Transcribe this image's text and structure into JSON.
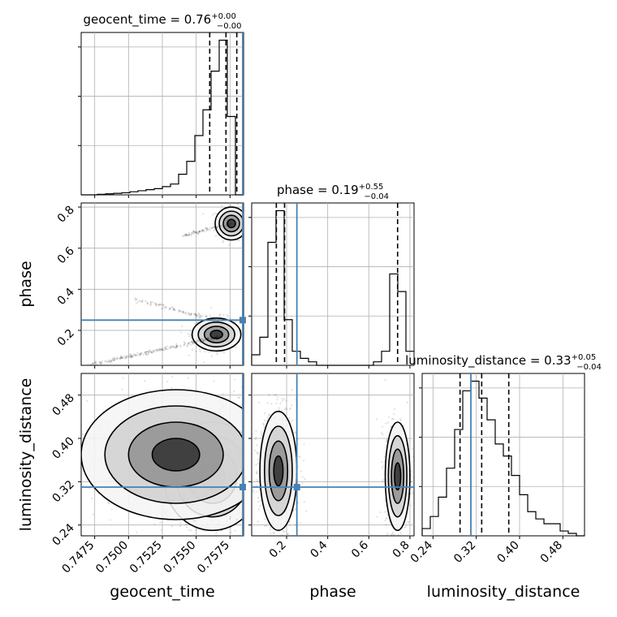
{
  "chart_data": {
    "type": "corner",
    "truth_color": "#4682b4",
    "line_color": "#000000",
    "grid": true,
    "params": [
      {
        "name": "geocent_time",
        "label": "geocent_time",
        "range": [
          0.7465,
          0.7585
        ],
        "ticks": [
          0.7475,
          0.75,
          0.7525,
          0.755,
          0.7575
        ],
        "tick_labels": [
          "0.7475",
          "0.7500",
          "0.7525",
          "0.7550",
          "0.7575"
        ],
        "truth": 0.7585,
        "title": {
          "prefix": "geocent_time = 0.76",
          "plus": "+0.00",
          "minus": "−0.00"
        },
        "quantiles": [
          0.756,
          0.7572,
          0.758
        ]
      },
      {
        "name": "phase",
        "label": "phase",
        "range": [
          0.03,
          0.82
        ],
        "ticks": [
          0.2,
          0.4,
          0.6,
          0.8
        ],
        "tick_labels": [
          "0.2",
          "0.4",
          "0.6",
          "0.8"
        ],
        "truth": 0.25,
        "title": {
          "prefix": "phase = 0.19",
          "plus": "+0.55",
          "minus": "−0.04"
        },
        "quantiles": [
          0.15,
          0.19,
          0.74
        ]
      },
      {
        "name": "luminosity_distance",
        "label": "luminosity_distance",
        "range": [
          0.22,
          0.52
        ],
        "ticks": [
          0.24,
          0.32,
          0.4,
          0.48
        ],
        "tick_labels": [
          "0.24",
          "0.32",
          "0.40",
          "0.48"
        ],
        "truth": 0.31,
        "title": {
          "prefix": "luminosity_distance = 0.33",
          "plus": "+0.05",
          "minus": "−0.04"
        },
        "quantiles": [
          0.29,
          0.33,
          0.38
        ]
      }
    ],
    "histograms": {
      "geocent_time": {
        "bin_edges": [
          0.7465,
          0.7471,
          0.7477,
          0.7483,
          0.7489,
          0.7495,
          0.7501,
          0.7507,
          0.7513,
          0.7519,
          0.7525,
          0.7531,
          0.7537,
          0.7543,
          0.7549,
          0.7555,
          0.7561,
          0.7567,
          0.7573,
          0.7579,
          0.7585
        ],
        "counts": [
          0,
          0,
          1,
          2,
          3,
          4,
          6,
          8,
          10,
          12,
          16,
          21,
          40,
          65,
          115,
          165,
          240,
          300,
          152,
          0
        ]
      },
      "phase": {
        "bin_edges": [
          0.03,
          0.0695,
          0.109,
          0.1485,
          0.188,
          0.2275,
          0.267,
          0.3065,
          0.346,
          0.3855,
          0.425,
          0.4645,
          0.504,
          0.5435,
          0.583,
          0.6225,
          0.662,
          0.7015,
          0.741,
          0.7805,
          0.82
        ],
        "counts": [
          3,
          8,
          35,
          44,
          13,
          4,
          2,
          1,
          0,
          0,
          0,
          0,
          0,
          0,
          0,
          1,
          4,
          26,
          21,
          4
        ]
      },
      "luminosity_distance": {
        "bin_edges": [
          0.22,
          0.235,
          0.25,
          0.265,
          0.28,
          0.295,
          0.31,
          0.325,
          0.34,
          0.355,
          0.37,
          0.385,
          0.4,
          0.415,
          0.43,
          0.445,
          0.46,
          0.475,
          0.49,
          0.505,
          0.52
        ],
        "counts": [
          3,
          8,
          16,
          28,
          44,
          60,
          64,
          57,
          48,
          38,
          33,
          25,
          17,
          10,
          7,
          5,
          5,
          2,
          1,
          0
        ]
      }
    },
    "scatter_clusters": {
      "phase_vs_geocent_time": [
        {
          "center": [
            0.7576,
            0.72
          ],
          "spread": [
            0.0006,
            0.04
          ],
          "n": 220
        },
        {
          "center": [
            0.7565,
            0.18
          ],
          "spread": [
            0.0009,
            0.04
          ],
          "n": 380
        },
        {
          "line": [
            [
              0.747,
              0.03
            ],
            [
              0.7568,
              0.17
            ]
          ],
          "n": 260
        },
        {
          "line": [
            [
              0.754,
              0.66
            ],
            [
              0.7576,
              0.72
            ]
          ],
          "n": 90
        },
        {
          "line": [
            [
              0.7505,
              0.35
            ],
            [
              0.757,
              0.24
            ]
          ],
          "n": 120
        }
      ],
      "luminosity_distance_vs_geocent_time": [
        {
          "center": [
            0.7562,
            0.33
          ],
          "spread": [
            0.0018,
            0.05
          ],
          "n": 1400
        },
        {
          "center": [
            0.7535,
            0.37
          ],
          "spread": [
            0.0035,
            0.06
          ],
          "n": 500
        }
      ],
      "luminosity_distance_vs_phase": [
        {
          "center": [
            0.16,
            0.34
          ],
          "spread": [
            0.045,
            0.055
          ],
          "n": 1100
        },
        {
          "center": [
            0.74,
            0.33
          ],
          "spread": [
            0.03,
            0.05
          ],
          "n": 700
        }
      ]
    }
  }
}
